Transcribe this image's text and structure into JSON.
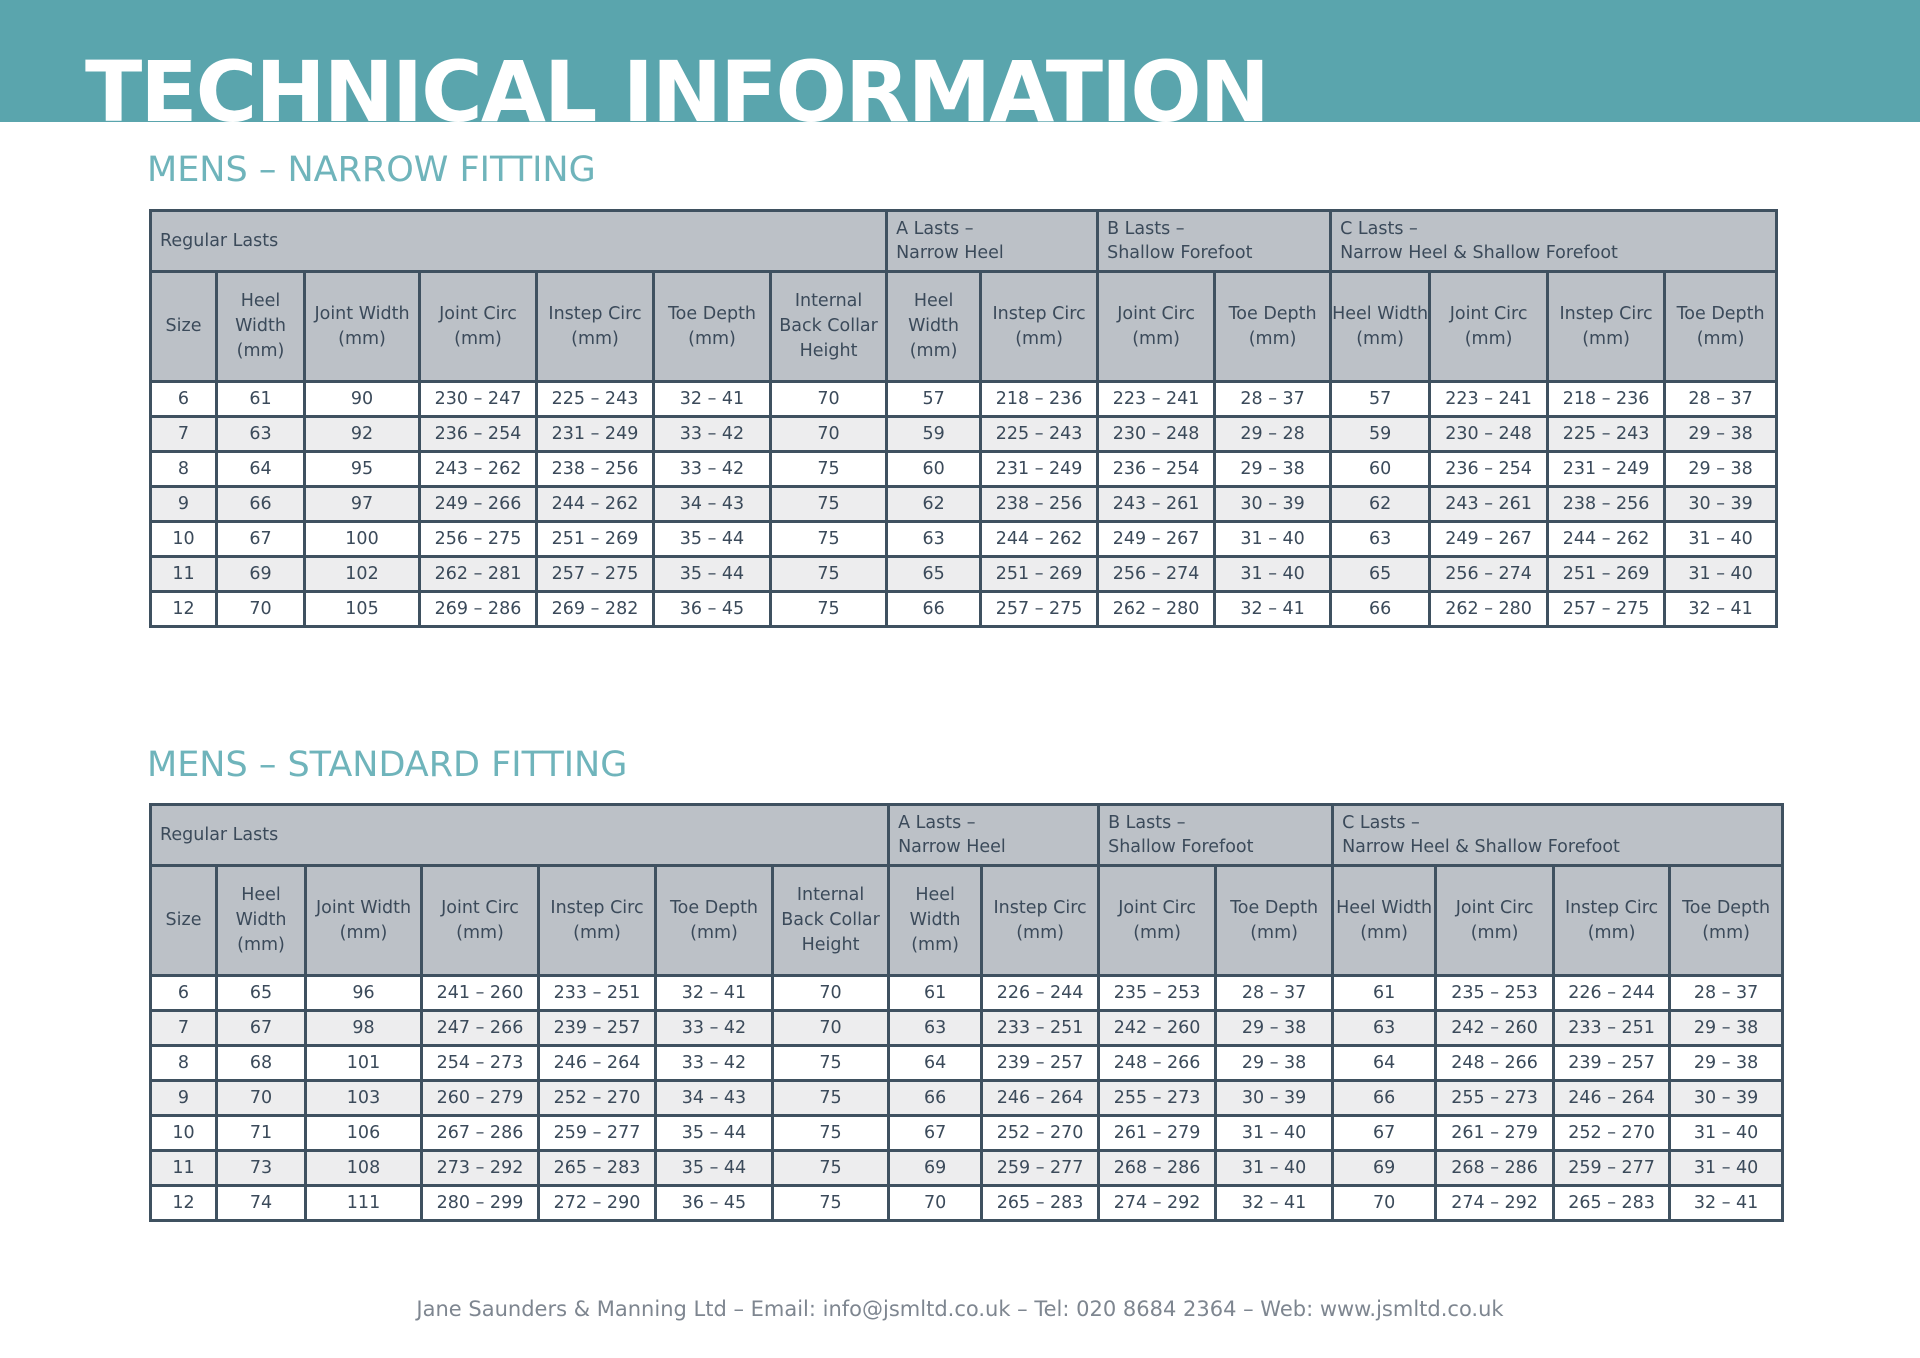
{
  "page_title": "TECHNICAL INFORMATION",
  "footer": "Jane Saunders & Manning Ltd – Email: info@jsmltd.co.uk – Tel: 020 8684 2364 – Web: www.jsmltd.co.uk",
  "colors": {
    "banner": "#5aa5ad",
    "section_title": "#6fb4bb",
    "header_fill": "#bcc1c7",
    "border": "#3f5160"
  },
  "groups": {
    "regular": "Regular Lasts",
    "a_line1": "A Lasts –",
    "a_line2": "Narrow Heel",
    "b_line1": "B Lasts –",
    "b_line2": "Shallow Forefoot",
    "c_line1": "C Lasts –",
    "c_line2": "Narrow Heel & Shallow Forefoot"
  },
  "columns": [
    "Size",
    "Heel Width (mm)",
    "Joint Width (mm)",
    "Joint Circ (mm)",
    "Instep Circ (mm)",
    "Toe Depth (mm)",
    "Internal Back Collar Height",
    "Heel Width (mm)",
    "Instep Circ (mm)",
    "Joint Circ (mm)",
    "Toe Depth (mm)",
    "Heel Width (mm)",
    "Joint Circ (mm)",
    "Instep Circ (mm)",
    "Toe Depth (mm)"
  ],
  "narrow": {
    "title": "MENS – NARROW FITTING",
    "rows": [
      [
        "6",
        "61",
        "90",
        "230 – 247",
        "225 – 243",
        "32 – 41",
        "70",
        "57",
        "218 – 236",
        "223 – 241",
        "28 – 37",
        "57",
        "223 – 241",
        "218 – 236",
        "28 – 37"
      ],
      [
        "7",
        "63",
        "92",
        "236 – 254",
        "231 – 249",
        "33 – 42",
        "70",
        "59",
        "225 – 243",
        "230 – 248",
        "29 – 28",
        "59",
        "230 – 248",
        "225 – 243",
        "29 – 38"
      ],
      [
        "8",
        "64",
        "95",
        "243 – 262",
        "238 – 256",
        "33 – 42",
        "75",
        "60",
        "231 – 249",
        "236 – 254",
        "29 – 38",
        "60",
        "236 – 254",
        "231 – 249",
        "29 – 38"
      ],
      [
        "9",
        "66",
        "97",
        "249 – 266",
        "244 – 262",
        "34 – 43",
        "75",
        "62",
        "238 – 256",
        "243 – 261",
        "30 – 39",
        "62",
        "243 – 261",
        "238 – 256",
        "30 – 39"
      ],
      [
        "10",
        "67",
        "100",
        "256 – 275",
        "251 – 269",
        "35 – 44",
        "75",
        "63",
        "244 – 262",
        "249 – 267",
        "31 – 40",
        "63",
        "249 – 267",
        "244 – 262",
        "31 – 40"
      ],
      [
        "11",
        "69",
        "102",
        "262 – 281",
        "257 – 275",
        "35 – 44",
        "75",
        "65",
        "251 – 269",
        "256 – 274",
        "31 – 40",
        "65",
        "256 – 274",
        "251 – 269",
        "31 – 40"
      ],
      [
        "12",
        "70",
        "105",
        "269 – 286",
        "269 – 282",
        "36 – 45",
        "75",
        "66",
        "257 – 275",
        "262 – 280",
        "32 – 41",
        "66",
        "262 – 280",
        "257 – 275",
        "32 – 41"
      ]
    ]
  },
  "standard": {
    "title": "MENS – STANDARD FITTING",
    "rows": [
      [
        "6",
        "65",
        "96",
        "241 – 260",
        "233 – 251",
        "32 – 41",
        "70",
        "61",
        "226 – 244",
        "235 – 253",
        "28 – 37",
        "61",
        "235 – 253",
        "226 – 244",
        "28 – 37"
      ],
      [
        "7",
        "67",
        "98",
        "247 – 266",
        "239 – 257",
        "33 – 42",
        "70",
        "63",
        "233 – 251",
        "242 – 260",
        "29 – 38",
        "63",
        "242 – 260",
        "233 – 251",
        "29 – 38"
      ],
      [
        "8",
        "68",
        "101",
        "254 – 273",
        "246 – 264",
        "33 – 42",
        "75",
        "64",
        "239 – 257",
        "248 – 266",
        "29 – 38",
        "64",
        "248 – 266",
        "239 – 257",
        "29 – 38"
      ],
      [
        "9",
        "70",
        "103",
        "260 – 279",
        "252 – 270",
        "34 – 43",
        "75",
        "66",
        "246 – 264",
        "255 – 273",
        "30 – 39",
        "66",
        "255 – 273",
        "246 – 264",
        "30 – 39"
      ],
      [
        "10",
        "71",
        "106",
        "267 – 286",
        "259 – 277",
        "35 – 44",
        "75",
        "67",
        "252 – 270",
        "261 – 279",
        "31 – 40",
        "67",
        "261 – 279",
        "252 – 270",
        "31 – 40"
      ],
      [
        "11",
        "73",
        "108",
        "273 – 292",
        "265 – 283",
        "35 – 44",
        "75",
        "69",
        "259 – 277",
        "268 – 286",
        "31 – 40",
        "69",
        "268 – 286",
        "259 – 277",
        "31 – 40"
      ],
      [
        "12",
        "74",
        "111",
        "280 – 299",
        "272 – 290",
        "36 – 45",
        "75",
        "70",
        "265 – 283",
        "274 – 292",
        "32 – 41",
        "70",
        "274 – 292",
        "265 – 283",
        "32 – 41"
      ]
    ]
  }
}
